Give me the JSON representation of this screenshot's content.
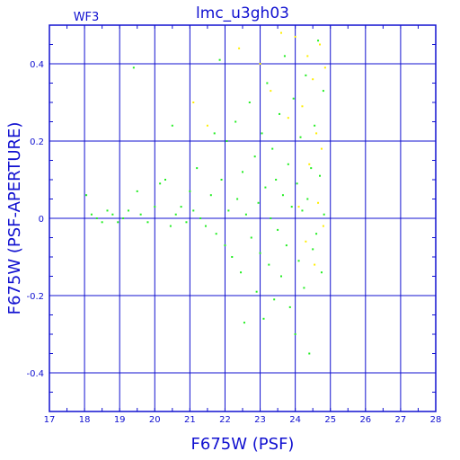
{
  "chart_data": {
    "type": "scatter",
    "title": "lmc_u3gh03",
    "panel_label": "WF3",
    "xlabel": "F675W (PSF)",
    "ylabel": "F675W (PSF-APERTURE)",
    "xlim": [
      17,
      28
    ],
    "ylim": [
      -0.5,
      0.5
    ],
    "x_ticks": [
      17,
      18,
      19,
      20,
      21,
      22,
      23,
      24,
      25,
      26,
      27,
      28
    ],
    "y_ticks": [
      -0.4,
      -0.2,
      0,
      0.2,
      0.4
    ],
    "x_tick_labels": [
      "17",
      "18",
      "19",
      "20",
      "21",
      "22",
      "23",
      "24",
      "25",
      "26",
      "27",
      "28"
    ],
    "y_tick_labels": [
      "-0.4",
      "-0.2",
      "0",
      "0.2",
      "0.4"
    ],
    "grid": true,
    "colors": {
      "axis": "#1010d0",
      "green": "#22ee22",
      "yellow": "#ffee00"
    },
    "series": [
      {
        "color": "#22ee22",
        "points": [
          [
            18.05,
            0.06
          ],
          [
            18.2,
            0.01
          ],
          [
            18.35,
            0.0
          ],
          [
            18.5,
            -0.01
          ],
          [
            18.65,
            0.02
          ],
          [
            18.8,
            0.01
          ],
          [
            18.95,
            -0.01
          ],
          [
            19.1,
            0.0
          ],
          [
            19.25,
            0.02
          ],
          [
            19.4,
            0.39
          ],
          [
            19.5,
            0.07
          ],
          [
            19.6,
            0.01
          ],
          [
            19.8,
            -0.01
          ],
          [
            20.0,
            0.03
          ],
          [
            20.15,
            0.09
          ],
          [
            20.3,
            0.1
          ],
          [
            20.45,
            -0.02
          ],
          [
            20.5,
            0.24
          ],
          [
            20.6,
            0.01
          ],
          [
            20.75,
            0.03
          ],
          [
            20.9,
            -0.01
          ],
          [
            21.0,
            0.07
          ],
          [
            21.1,
            0.02
          ],
          [
            21.2,
            0.13
          ],
          [
            21.3,
            0.0
          ],
          [
            21.45,
            -0.02
          ],
          [
            21.6,
            0.06
          ],
          [
            21.7,
            0.22
          ],
          [
            21.75,
            -0.04
          ],
          [
            21.85,
            0.41
          ],
          [
            21.9,
            0.1
          ],
          [
            22.0,
            -0.07
          ],
          [
            22.05,
            0.2
          ],
          [
            22.1,
            0.02
          ],
          [
            22.2,
            -0.1
          ],
          [
            22.3,
            0.25
          ],
          [
            22.35,
            0.05
          ],
          [
            22.45,
            -0.14
          ],
          [
            22.5,
            0.12
          ],
          [
            22.55,
            -0.27
          ],
          [
            22.6,
            0.01
          ],
          [
            22.7,
            0.3
          ],
          [
            22.75,
            -0.05
          ],
          [
            22.85,
            0.16
          ],
          [
            22.9,
            -0.19
          ],
          [
            22.95,
            0.04
          ],
          [
            23.0,
            -0.09
          ],
          [
            23.05,
            0.22
          ],
          [
            23.1,
            -0.26
          ],
          [
            23.15,
            0.08
          ],
          [
            23.2,
            0.35
          ],
          [
            23.25,
            -0.12
          ],
          [
            23.3,
            0.0
          ],
          [
            23.35,
            0.18
          ],
          [
            23.4,
            -0.21
          ],
          [
            23.45,
            0.1
          ],
          [
            23.5,
            -0.03
          ],
          [
            23.55,
            0.27
          ],
          [
            23.6,
            -0.15
          ],
          [
            23.65,
            0.06
          ],
          [
            23.7,
            0.42
          ],
          [
            23.75,
            -0.07
          ],
          [
            23.8,
            0.14
          ],
          [
            23.85,
            -0.23
          ],
          [
            23.9,
            0.03
          ],
          [
            23.95,
            0.31
          ],
          [
            24.0,
            -0.3
          ],
          [
            24.05,
            0.09
          ],
          [
            24.1,
            -0.11
          ],
          [
            24.15,
            0.21
          ],
          [
            24.2,
            0.02
          ],
          [
            24.25,
            -0.18
          ],
          [
            24.3,
            0.37
          ],
          [
            24.35,
            0.05
          ],
          [
            24.4,
            -0.35
          ],
          [
            24.45,
            0.13
          ],
          [
            24.5,
            -0.08
          ],
          [
            24.55,
            0.24
          ],
          [
            24.6,
            -0.04
          ],
          [
            24.65,
            0.46
          ],
          [
            24.7,
            0.11
          ],
          [
            24.75,
            -0.14
          ],
          [
            24.8,
            0.33
          ],
          [
            24.82,
            0.01
          ]
        ]
      },
      {
        "color": "#ffee00",
        "points": [
          [
            21.1,
            0.3
          ],
          [
            21.5,
            0.24
          ],
          [
            22.4,
            0.44
          ],
          [
            23.0,
            0.4
          ],
          [
            23.3,
            0.33
          ],
          [
            23.6,
            0.48
          ],
          [
            23.8,
            0.26
          ],
          [
            24.0,
            0.47
          ],
          [
            24.1,
            0.03
          ],
          [
            24.2,
            0.29
          ],
          [
            24.3,
            -0.06
          ],
          [
            24.35,
            0.42
          ],
          [
            24.4,
            0.14
          ],
          [
            24.5,
            0.36
          ],
          [
            24.55,
            -0.12
          ],
          [
            24.6,
            0.22
          ],
          [
            24.65,
            0.04
          ],
          [
            24.7,
            0.45
          ],
          [
            24.75,
            0.18
          ],
          [
            24.8,
            -0.02
          ],
          [
            24.85,
            0.39
          ]
        ]
      }
    ]
  }
}
